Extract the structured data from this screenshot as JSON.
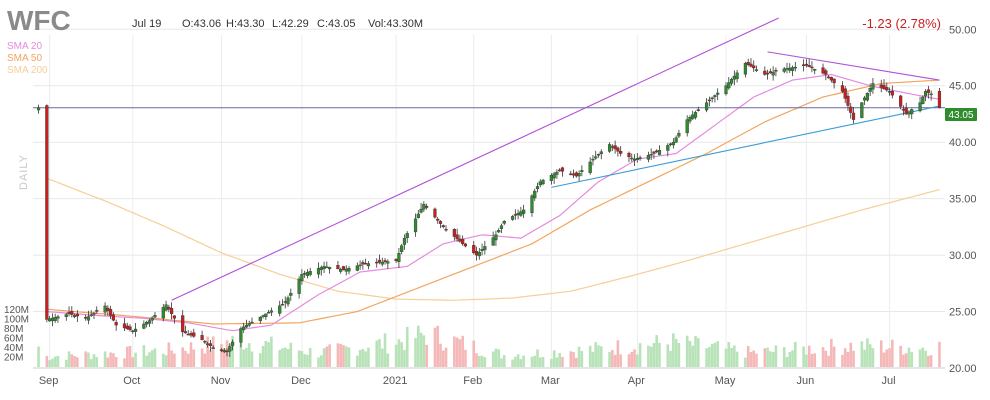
{
  "header": {
    "ticker": "WFC",
    "date": "Jul 19",
    "open": "O:43.06",
    "high": "H:43.30",
    "low": "L:42.29",
    "close": "C:43.05",
    "volume": "Vol:43.30M",
    "change": "-1.23 (2.78%)"
  },
  "legend": [
    {
      "label": "SMA 20",
      "color": "#e58ae0"
    },
    {
      "label": "SMA 50",
      "color": "#f2a55e"
    },
    {
      "label": "SMA 200",
      "color": "#f5cf96"
    }
  ],
  "timeframe_label": "DAILY",
  "last_price_label": "43.05",
  "chart_data": {
    "type": "candlestick",
    "y_axis": {
      "range": [
        20,
        51
      ],
      "ticks": [
        "20.00",
        "25.00",
        "30.00",
        "35.00",
        "40.00",
        "45.00",
        "50.00"
      ]
    },
    "volume_axis": {
      "ticks": [
        "20M",
        "40M",
        "60M",
        "80M",
        "100M",
        "120M"
      ]
    },
    "x_axis": {
      "ticks": [
        "Sep",
        "Oct",
        "Nov",
        "Dec",
        "2021",
        "Feb",
        "Mar",
        "Apr",
        "May",
        "Jun",
        "Jul"
      ]
    },
    "price_path": [
      [
        "2020-08-31",
        24.3
      ],
      [
        "2020-09-08",
        24.8
      ],
      [
        "2020-09-14",
        24.4
      ],
      [
        "2020-09-21",
        25.5
      ],
      [
        "2020-09-25",
        23.8
      ],
      [
        "2020-10-01",
        23.3
      ],
      [
        "2020-10-07",
        24.2
      ],
      [
        "2020-10-13",
        25.6
      ],
      [
        "2020-10-19",
        23.2
      ],
      [
        "2020-10-26",
        22.5
      ],
      [
        "2020-10-30",
        21.8
      ],
      [
        "2020-11-04",
        21.5
      ],
      [
        "2020-11-09",
        23.5
      ],
      [
        "2020-11-16",
        24.5
      ],
      [
        "2020-11-25",
        25.8
      ],
      [
        "2020-12-01",
        28.3
      ],
      [
        "2020-12-09",
        29.0
      ],
      [
        "2020-12-16",
        28.7
      ],
      [
        "2020-12-23",
        29.2
      ],
      [
        "2021-01-04",
        29.5
      ],
      [
        "2021-01-07",
        31.5
      ],
      [
        "2021-01-14",
        34.5
      ],
      [
        "2021-01-21",
        32.5
      ],
      [
        "2021-01-28",
        31.0
      ],
      [
        "2021-02-02",
        30.0
      ],
      [
        "2021-02-09",
        31.8
      ],
      [
        "2021-02-12",
        33.0
      ],
      [
        "2021-02-19",
        34.0
      ],
      [
        "2021-02-25",
        36.5
      ],
      [
        "2021-03-04",
        37.5
      ],
      [
        "2021-03-10",
        37.0
      ],
      [
        "2021-03-16",
        38.5
      ],
      [
        "2021-03-22",
        39.8
      ],
      [
        "2021-03-26",
        39.0
      ],
      [
        "2021-03-31",
        38.5
      ],
      [
        "2021-04-07",
        39.0
      ],
      [
        "2021-04-14",
        40.0
      ],
      [
        "2021-04-19",
        42.0
      ],
      [
        "2021-04-26",
        43.5
      ],
      [
        "2021-05-03",
        45.0
      ],
      [
        "2021-05-10",
        47.0
      ],
      [
        "2021-05-17",
        46.0
      ],
      [
        "2021-05-24",
        46.5
      ],
      [
        "2021-06-01",
        46.8
      ],
      [
        "2021-06-08",
        46.0
      ],
      [
        "2021-06-14",
        44.5
      ],
      [
        "2021-06-18",
        42.0
      ],
      [
        "2021-06-21",
        43.5
      ],
      [
        "2021-06-25",
        45.2
      ],
      [
        "2021-07-01",
        44.5
      ],
      [
        "2021-07-07",
        42.5
      ],
      [
        "2021-07-12",
        43.5
      ],
      [
        "2021-07-14",
        44.5
      ],
      [
        "2021-07-16",
        44.28
      ],
      [
        "2021-07-19",
        43.05
      ]
    ],
    "sma20_path": [
      [
        "2020-08-31",
        25.0
      ],
      [
        "2020-09-21",
        24.6
      ],
      [
        "2020-10-05",
        24.4
      ],
      [
        "2020-10-21",
        24.0
      ],
      [
        "2020-11-06",
        23.3
      ],
      [
        "2020-11-20",
        23.8
      ],
      [
        "2020-12-07",
        26.5
      ],
      [
        "2020-12-22",
        28.5
      ],
      [
        "2021-01-08",
        29.0
      ],
      [
        "2021-01-21",
        31.0
      ],
      [
        "2021-02-04",
        31.8
      ],
      [
        "2021-02-18",
        31.5
      ],
      [
        "2021-03-04",
        33.5
      ],
      [
        "2021-03-18",
        36.5
      ],
      [
        "2021-04-01",
        38.5
      ],
      [
        "2021-04-15",
        39.0
      ],
      [
        "2021-04-29",
        41.5
      ],
      [
        "2021-05-13",
        44.0
      ],
      [
        "2021-05-27",
        45.5
      ],
      [
        "2021-06-10",
        46.0
      ],
      [
        "2021-06-24",
        45.0
      ],
      [
        "2021-07-08",
        44.3
      ],
      [
        "2021-07-19",
        43.8
      ]
    ],
    "sma50_path": [
      [
        "2020-08-31",
        25.2
      ],
      [
        "2020-09-30",
        24.6
      ],
      [
        "2020-10-30",
        23.9
      ],
      [
        "2020-11-30",
        24.0
      ],
      [
        "2020-12-21",
        25.0
      ],
      [
        "2021-01-11",
        27.0
      ],
      [
        "2021-02-01",
        29.0
      ],
      [
        "2021-02-22",
        31.0
      ],
      [
        "2021-03-15",
        34.0
      ],
      [
        "2021-04-05",
        36.5
      ],
      [
        "2021-04-26",
        39.0
      ],
      [
        "2021-05-17",
        41.8
      ],
      [
        "2021-06-07",
        44.0
      ],
      [
        "2021-06-28",
        45.2
      ],
      [
        "2021-07-19",
        45.5
      ]
    ],
    "sma200_path": [
      [
        "2020-08-31",
        36.8
      ],
      [
        "2020-09-21",
        34.8
      ],
      [
        "2020-10-12",
        32.6
      ],
      [
        "2020-11-02",
        30.2
      ],
      [
        "2020-11-23",
        28.3
      ],
      [
        "2020-12-14",
        26.8
      ],
      [
        "2021-01-04",
        26.1
      ],
      [
        "2021-01-25",
        26.0
      ],
      [
        "2021-02-15",
        26.2
      ],
      [
        "2021-03-08",
        26.8
      ],
      [
        "2021-03-29",
        28.1
      ],
      [
        "2021-04-19",
        29.5
      ],
      [
        "2021-05-10",
        31.0
      ],
      [
        "2021-05-31",
        32.5
      ],
      [
        "2021-06-21",
        34.0
      ],
      [
        "2021-07-19",
        35.8
      ]
    ],
    "volume_path_M": [
      [
        "2020-08-31",
        22
      ],
      [
        "2020-09-20",
        28
      ],
      [
        "2020-10-13",
        35
      ],
      [
        "2020-11-09",
        55
      ],
      [
        "2020-12-07",
        30
      ],
      [
        "2021-01-06",
        55
      ],
      [
        "2021-01-15",
        70
      ],
      [
        "2021-02-12",
        25
      ],
      [
        "2021-03-12",
        35
      ],
      [
        "2021-04-14",
        52
      ],
      [
        "2021-05-12",
        30
      ],
      [
        "2021-06-18",
        45
      ],
      [
        "2021-07-14",
        40
      ],
      [
        "2021-07-19",
        43.3
      ]
    ],
    "trendlines": [
      {
        "name": "upper-channel",
        "color": "#b050d8",
        "from": [
          "2020-10-15",
          26.0
        ],
        "to": [
          "2021-05-22",
          51.0
        ]
      },
      {
        "name": "support",
        "color": "#3a9bd8",
        "from": [
          "2021-03-01",
          36.0
        ],
        "to": [
          "2021-07-19",
          43.2
        ]
      },
      {
        "name": "resistance",
        "color": "#b050d8",
        "from": [
          "2021-05-18",
          48.0
        ],
        "to": [
          "2021-07-19",
          45.5
        ]
      }
    ],
    "horizontal_line": 43.05
  }
}
